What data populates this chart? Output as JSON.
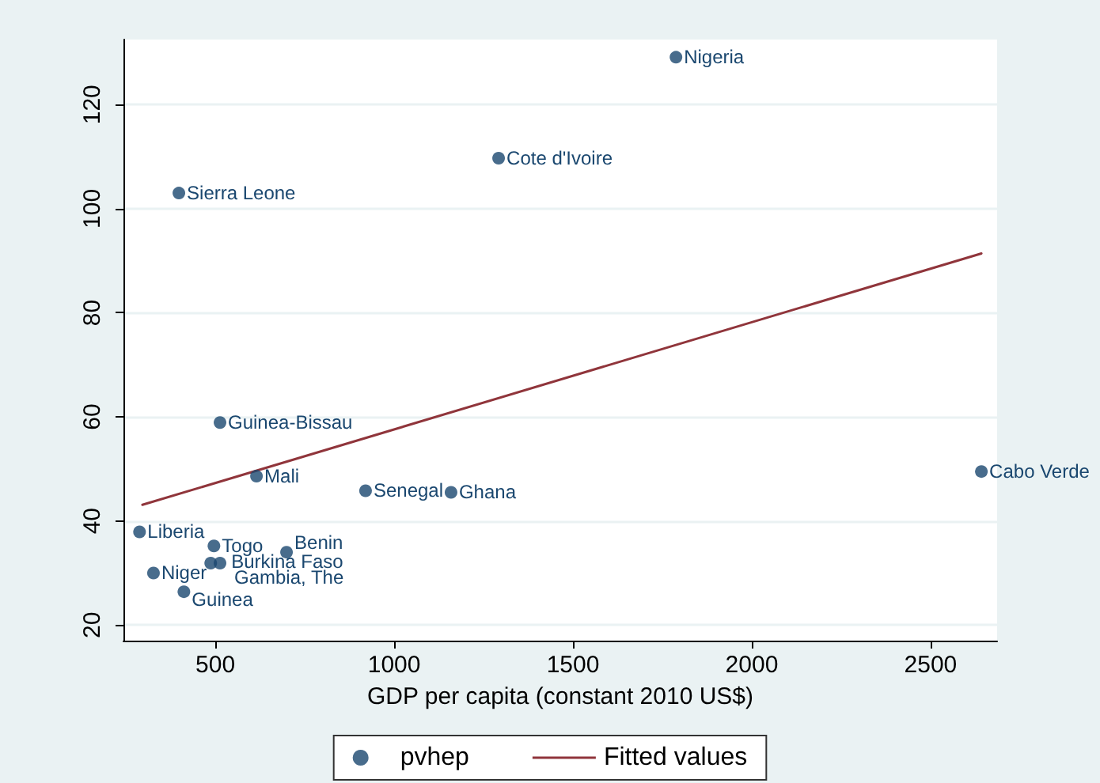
{
  "chart_data": {
    "type": "scatter",
    "xlabel": "GDP per capita (constant 2010 US$)",
    "xlim": [
      243,
      2686
    ],
    "xticks": [
      500,
      1000,
      1500,
      2000,
      2500
    ],
    "ylim": [
      17,
      132.5
    ],
    "yticks": [
      20,
      40,
      60,
      80,
      100,
      120
    ],
    "grid": "y",
    "legend": "bottom",
    "marker": "circle",
    "series": [
      {
        "name": "pvhep",
        "color": "#1a476f",
        "x": [
          1788,
          1292,
          398,
          513,
          615,
          920,
          1159,
          2642,
          288,
          496,
          699,
          487,
          513,
          327,
          412
        ],
        "values": [
          129.1,
          109.7,
          103,
          58.9,
          48.6,
          45.8,
          45.5,
          49.5,
          37.9,
          35.2,
          34,
          31.9,
          31.9,
          30,
          26.4
        ]
      },
      {
        "name": "Fitted values",
        "type": "line",
        "color": "#90353b",
        "marker": "none",
        "line_style": "solid",
        "x": [
          296,
          2642
        ],
        "values": [
          43.1,
          91.4
        ]
      }
    ],
    "annotations": [
      {
        "text": "Nigeria",
        "x": 1788,
        "y": 129.1
      },
      {
        "text": "Cote d'Ivoire",
        "x": 1292,
        "y": 109.7
      },
      {
        "text": "Sierra Leone",
        "x": 398,
        "y": 103
      },
      {
        "text": "Guinea-Bissau",
        "x": 513,
        "y": 58.9
      },
      {
        "text": "Mali",
        "x": 615,
        "y": 48.6
      },
      {
        "text": "Senegal",
        "x": 920,
        "y": 45.8
      },
      {
        "text": "Ghana",
        "x": 1159,
        "y": 45.5
      },
      {
        "text": "Cabo Verde",
        "x": 2642,
        "y": 49.5
      },
      {
        "text": "Liberia",
        "x": 288,
        "y": 37.9
      },
      {
        "text": "Togo",
        "x": 496,
        "y": 35.2
      },
      {
        "text": "Benin",
        "x": 699,
        "y": 34
      },
      {
        "text": "Burkina Faso",
        "x": 487,
        "y": 31.9
      },
      {
        "text": "Gambia, The",
        "x": 513,
        "y": 31.9
      },
      {
        "text": "Niger",
        "x": 327,
        "y": 30
      },
      {
        "text": "Guinea",
        "x": 412,
        "y": 26.4
      }
    ]
  }
}
